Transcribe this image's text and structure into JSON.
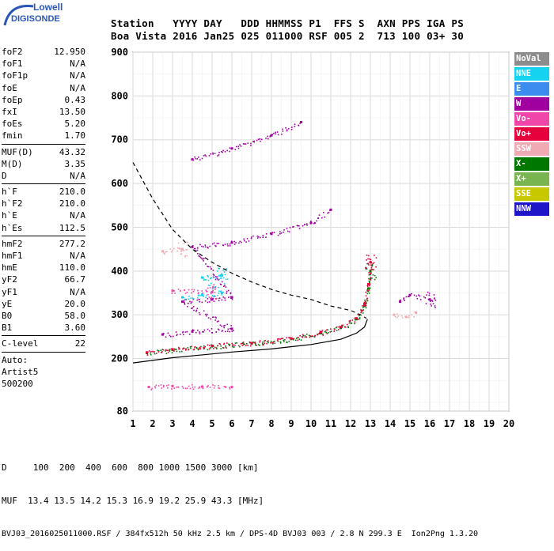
{
  "logo": {
    "line1": "Lowell",
    "line2": "DIGISONDE"
  },
  "header": {
    "row1": "Station   YYYY DAY   DDD HHMMSS P1  FFS S  AXN PPS IGA PS",
    "row2": "Boa Vista 2016 Jan25 025 011000 RSF 005 2  713 100 03+ 30"
  },
  "params": [
    {
      "group": [
        {
          "label": "foF2",
          "value": "12.950"
        },
        {
          "label": "foF1",
          "value": "N/A"
        },
        {
          "label": "foF1p",
          "value": "N/A"
        },
        {
          "label": "foE",
          "value": "N/A"
        },
        {
          "label": "foEp",
          "value": "0.43"
        },
        {
          "label": "fxI",
          "value": "13.50"
        },
        {
          "label": "foEs",
          "value": "5.20"
        },
        {
          "label": "fmin",
          "value": "1.70"
        }
      ]
    },
    {
      "group": [
        {
          "label": "MUF(D)",
          "value": "43.32"
        },
        {
          "label": "M(D)",
          "value": "3.35"
        },
        {
          "label": "D",
          "value": "N/A"
        }
      ]
    },
    {
      "group": [
        {
          "label": "h`F",
          "value": "210.0"
        },
        {
          "label": "h`F2",
          "value": "210.0"
        },
        {
          "label": "h`E",
          "value": "N/A"
        },
        {
          "label": "h`Es",
          "value": "112.5"
        }
      ]
    },
    {
      "group": [
        {
          "label": "hmF2",
          "value": "277.2"
        },
        {
          "label": "hmF1",
          "value": "N/A"
        },
        {
          "label": "hmE",
          "value": "110.0"
        },
        {
          "label": "yF2",
          "value": "66.7"
        },
        {
          "label": "yF1",
          "value": "N/A"
        },
        {
          "label": "yE",
          "value": "20.0"
        },
        {
          "label": "B0",
          "value": "58.0"
        },
        {
          "label": "B1",
          "value": "3.60"
        }
      ]
    },
    {
      "group": [
        {
          "label": "C-level",
          "value": "22"
        }
      ]
    }
  ],
  "auto": {
    "line1": "Auto:",
    "line2": "Artist5",
    "line3": "500200"
  },
  "legend": [
    {
      "label": "NoVal",
      "color": "#8c8c8c"
    },
    {
      "label": "NNE",
      "color": "#14d2f0"
    },
    {
      "label": "E",
      "color": "#3c8cf0"
    },
    {
      "label": "W",
      "color": "#a000a0"
    },
    {
      "label": "Vo-",
      "color": "#f046aa"
    },
    {
      "label": "Vo+",
      "color": "#e6003c"
    },
    {
      "label": "SSW",
      "color": "#f0aab4"
    },
    {
      "label": "X-",
      "color": "#007800"
    },
    {
      "label": "X+",
      "color": "#78b450"
    },
    {
      "label": "SSE",
      "color": "#c8c800"
    },
    {
      "label": "NNW",
      "color": "#1e14c8"
    }
  ],
  "chart_data": {
    "type": "scatter",
    "title": "",
    "xlabel": "",
    "ylabel": "",
    "xlim": [
      1,
      20
    ],
    "ylim": [
      80,
      900
    ],
    "x_ticks": [
      "1",
      "2",
      "3",
      "4",
      "5",
      "6",
      "7",
      "8",
      "9",
      "10",
      "11",
      "12",
      "13",
      "14",
      "15",
      "16",
      "17",
      "18",
      "19",
      "20"
    ],
    "y_ticks": [
      "80",
      "200",
      "300",
      "400",
      "500",
      "600",
      "700",
      "800",
      "900"
    ],
    "y_tick_values": [
      80,
      200,
      300,
      400,
      500,
      600,
      700,
      800,
      900
    ],
    "grid": true,
    "series": [
      {
        "name": "X-",
        "color": "#007800",
        "points": [
          [
            1.7,
            213
          ],
          [
            3,
            220
          ],
          [
            5,
            228
          ],
          [
            7,
            234
          ],
          [
            9,
            245
          ],
          [
            10.5,
            258
          ],
          [
            11.5,
            270
          ],
          [
            12.3,
            290
          ],
          [
            12.7,
            320
          ],
          [
            12.9,
            360
          ],
          [
            13,
            400
          ]
        ]
      },
      {
        "name": "Vo+",
        "color": "#e6003c",
        "points": [
          [
            1.7,
            214
          ],
          [
            3,
            221
          ],
          [
            5,
            229
          ],
          [
            7,
            235
          ],
          [
            9,
            246
          ],
          [
            10.5,
            260
          ],
          [
            11.5,
            272
          ],
          [
            12.3,
            292
          ],
          [
            12.7,
            325
          ],
          [
            12.9,
            370
          ],
          [
            13,
            420
          ]
        ]
      },
      {
        "name": "W",
        "color": "#a000a0",
        "points": [
          [
            2.5,
            255
          ],
          [
            4,
            262
          ],
          [
            6,
            268
          ],
          [
            3.5,
            330
          ],
          [
            5,
            335
          ],
          [
            6,
            340
          ],
          [
            4,
            455
          ],
          [
            6,
            465
          ],
          [
            8,
            485
          ],
          [
            10,
            510
          ],
          [
            11,
            540
          ],
          [
            4,
            655
          ],
          [
            6,
            680
          ],
          [
            8,
            710
          ],
          [
            9.5,
            740
          ],
          [
            14.5,
            330
          ],
          [
            15,
            345
          ],
          [
            16,
            335
          ]
        ]
      },
      {
        "name": "SSW",
        "color": "#f0aab4",
        "points": [
          [
            14.2,
            300
          ],
          [
            14.8,
            295
          ],
          [
            15.3,
            305
          ],
          [
            2.5,
            445
          ],
          [
            3.5,
            450
          ]
        ]
      },
      {
        "name": "NNE",
        "color": "#14d2f0",
        "points": [
          [
            3.5,
            340
          ],
          [
            4.5,
            345
          ],
          [
            5.5,
            350
          ],
          [
            4.5,
            385
          ],
          [
            5.5,
            390
          ]
        ]
      },
      {
        "name": "Vo-",
        "color": "#f046aa",
        "points": [
          [
            1.8,
            135
          ],
          [
            3,
            137
          ],
          [
            4.5,
            136
          ],
          [
            6,
            135
          ],
          [
            3,
            355
          ],
          [
            5,
            352
          ]
        ]
      }
    ],
    "curves": [
      {
        "name": "virtual-height",
        "values": [
          [
            1,
            190
          ],
          [
            3,
            202
          ],
          [
            6,
            215
          ],
          [
            8,
            222
          ],
          [
            10,
            232
          ],
          [
            11.5,
            244
          ],
          [
            12.3,
            258
          ],
          [
            12.7,
            272
          ],
          [
            12.85,
            290
          ]
        ]
      },
      {
        "name": "profile",
        "values": [
          [
            1,
            648
          ],
          [
            2,
            565
          ],
          [
            3,
            495
          ],
          [
            4,
            450
          ],
          [
            5,
            420
          ],
          [
            6,
            395
          ],
          [
            7,
            375
          ],
          [
            8,
            358
          ],
          [
            9,
            345
          ],
          [
            10,
            335
          ],
          [
            11,
            320
          ],
          [
            12,
            310
          ],
          [
            12.5,
            300
          ],
          [
            12.8,
            292
          ]
        ]
      }
    ]
  },
  "footer": {
    "row1": "D     100  200  400  600  800 1000 1500 3000 [km]",
    "row2": "MUF  13.4 13.5 14.2 15.3 16.9 19.2 25.9 43.3 [MHz]",
    "row3": "BVJ03_2016025011000.RSF / 384fx512h 50 kHz 2.5 km / DPS-4D BVJ03 003 / 2.8 N 299.3 E  Ion2Png 1.3.20"
  }
}
